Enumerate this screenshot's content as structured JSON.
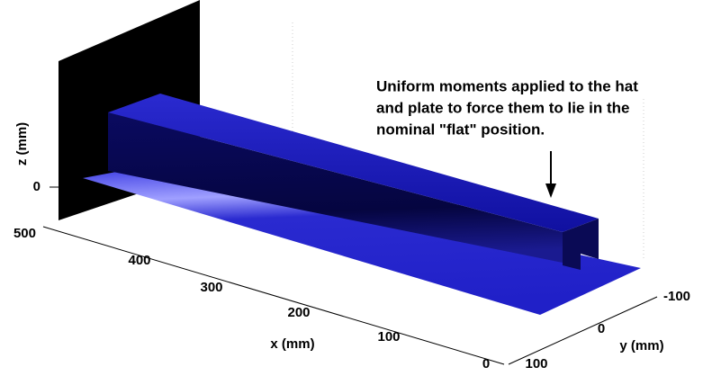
{
  "annotation": [
    "Uniform moments applied to the hat",
    "and plate to force them to lie in the",
    "nominal \"flat\" position."
  ],
  "axes": {
    "x": {
      "label": "x (mm)",
      "ticks": [
        500,
        400,
        300,
        200,
        100,
        0
      ]
    },
    "y": {
      "label": "y (mm)",
      "ticks": [
        -100,
        0,
        100
      ]
    },
    "z": {
      "label": "z (mm)",
      "ticks": [
        0
      ]
    }
  }
}
